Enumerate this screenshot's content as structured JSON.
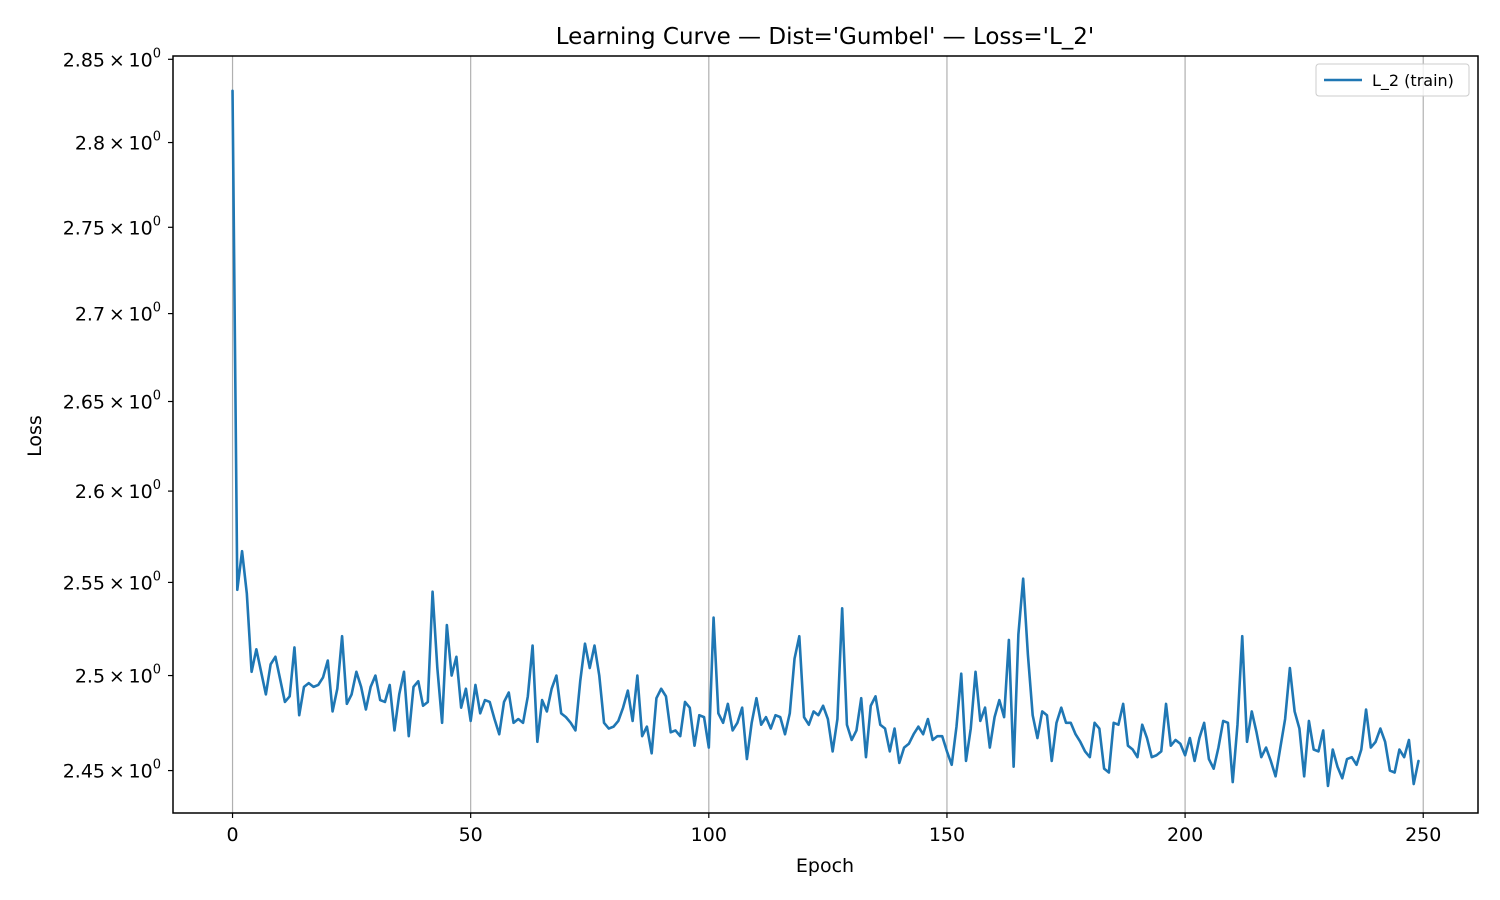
{
  "chart_data": {
    "type": "line",
    "title": "Learning Curve — Dist='Gumbel' — Loss='L_2'",
    "xlabel": "Epoch",
    "ylabel": "Loss",
    "y_scale": "log",
    "xlim": [
      -12.5,
      261.5
    ],
    "ylim": [
      2.428,
      2.852
    ],
    "x_ticks": [
      0,
      50,
      100,
      150,
      200,
      250
    ],
    "y_ticks": [
      2.45,
      2.5,
      2.55,
      2.6,
      2.65,
      2.7,
      2.75,
      2.8,
      2.85
    ],
    "y_tick_labels": [
      {
        "mantissa": "2.45",
        "exponent": "0"
      },
      {
        "mantissa": "2.5",
        "exponent": "0"
      },
      {
        "mantissa": "2.55",
        "exponent": "0"
      },
      {
        "mantissa": "2.6",
        "exponent": "0"
      },
      {
        "mantissa": "2.65",
        "exponent": "0"
      },
      {
        "mantissa": "2.7",
        "exponent": "0"
      },
      {
        "mantissa": "2.75",
        "exponent": "0"
      },
      {
        "mantissa": "2.8",
        "exponent": "0"
      },
      {
        "mantissa": "2.85",
        "exponent": "0"
      }
    ],
    "grid": "x-major vertical lines",
    "legend_position": "top-right",
    "series": [
      {
        "name": "L_2 (train)",
        "color": "#1f77b4",
        "x_start": 0,
        "x_step": 1,
        "values": [
          2.831,
          2.546,
          2.567,
          2.544,
          2.502,
          2.514,
          2.502,
          2.49,
          2.506,
          2.51,
          2.498,
          2.486,
          2.489,
          2.515,
          2.479,
          2.494,
          2.496,
          2.494,
          2.495,
          2.499,
          2.508,
          2.481,
          2.493,
          2.521,
          2.485,
          2.49,
          2.502,
          2.494,
          2.482,
          2.494,
          2.5,
          2.487,
          2.486,
          2.495,
          2.471,
          2.49,
          2.502,
          2.468,
          2.494,
          2.497,
          2.484,
          2.486,
          2.545,
          2.504,
          2.475,
          2.527,
          2.5,
          2.51,
          2.483,
          2.493,
          2.476,
          2.495,
          2.48,
          2.487,
          2.486,
          2.477,
          2.469,
          2.486,
          2.491,
          2.475,
          2.477,
          2.475,
          2.489,
          2.516,
          2.465,
          2.487,
          2.481,
          2.493,
          2.5,
          2.48,
          2.478,
          2.475,
          2.471,
          2.497,
          2.517,
          2.504,
          2.516,
          2.5,
          2.475,
          2.472,
          2.473,
          2.476,
          2.483,
          2.492,
          2.476,
          2.5,
          2.468,
          2.473,
          2.459,
          2.488,
          2.493,
          2.489,
          2.47,
          2.471,
          2.468,
          2.486,
          2.483,
          2.463,
          2.479,
          2.478,
          2.462,
          2.531,
          2.48,
          2.475,
          2.485,
          2.471,
          2.475,
          2.483,
          2.456,
          2.475,
          2.488,
          2.474,
          2.478,
          2.472,
          2.479,
          2.478,
          2.469,
          2.48,
          2.509,
          2.521,
          2.478,
          2.474,
          2.481,
          2.479,
          2.484,
          2.477,
          2.46,
          2.477,
          2.536,
          2.474,
          2.466,
          2.471,
          2.488,
          2.457,
          2.484,
          2.489,
          2.474,
          2.472,
          2.46,
          2.472,
          2.454,
          2.462,
          2.464,
          2.469,
          2.473,
          2.469,
          2.477,
          2.466,
          2.468,
          2.468,
          2.46,
          2.453,
          2.473,
          2.501,
          2.455,
          2.472,
          2.502,
          2.476,
          2.483,
          2.462,
          2.478,
          2.487,
          2.478,
          2.519,
          2.452,
          2.522,
          2.552,
          2.511,
          2.479,
          2.467,
          2.481,
          2.479,
          2.455,
          2.475,
          2.483,
          2.475,
          2.475,
          2.469,
          2.465,
          2.46,
          2.457,
          2.475,
          2.472,
          2.451,
          2.449,
          2.475,
          2.474,
          2.485,
          2.463,
          2.461,
          2.457,
          2.474,
          2.467,
          2.457,
          2.458,
          2.46,
          2.485,
          2.463,
          2.466,
          2.464,
          2.458,
          2.467,
          2.455,
          2.467,
          2.475,
          2.456,
          2.451,
          2.462,
          2.476,
          2.475,
          2.444,
          2.474,
          2.521,
          2.465,
          2.481,
          2.47,
          2.457,
          2.462,
          2.455,
          2.447,
          2.462,
          2.477,
          2.504,
          2.481,
          2.472,
          2.447,
          2.476,
          2.461,
          2.46,
          2.471,
          2.442,
          2.461,
          2.452,
          2.446,
          2.456,
          2.457,
          2.453,
          2.461,
          2.482,
          2.462,
          2.465,
          2.472,
          2.465,
          2.45,
          2.449,
          2.461,
          2.457,
          2.466,
          2.443,
          2.455
        ]
      }
    ]
  }
}
